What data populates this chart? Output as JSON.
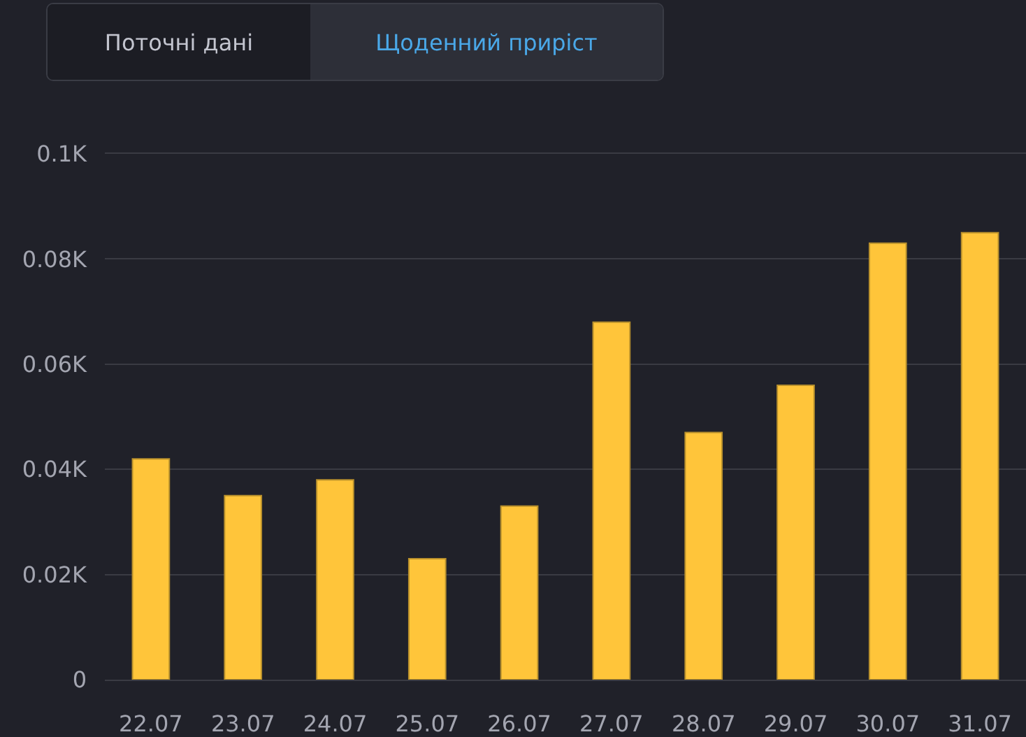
{
  "chart_data": {
    "type": "bar",
    "title": "Щоденний приріст",
    "annotations": [
      "Поточні дані"
    ],
    "categories": [
      "22.07",
      "23.07",
      "24.07",
      "25.07",
      "26.07",
      "27.07",
      "28.07",
      "29.07",
      "30.07",
      "31.07"
    ],
    "values": [
      0.042,
      0.035,
      0.038,
      0.023,
      0.033,
      0.068,
      0.047,
      0.056,
      0.083,
      0.085
    ],
    "color": "#ffc53a",
    "ylim": [
      0,
      0.1
    ],
    "yticks": [
      0,
      {
        "value": 0.02,
        "label": "0.02K"
      },
      {
        "value": 0.04,
        "label": "0.04K"
      },
      {
        "value": 0.06,
        "label": "0.06K"
      },
      {
        "value": 0.08,
        "label": "0.08K"
      },
      {
        "value": 0.1,
        "label": "0.1K"
      }
    ],
    "grid": "y"
  }
}
